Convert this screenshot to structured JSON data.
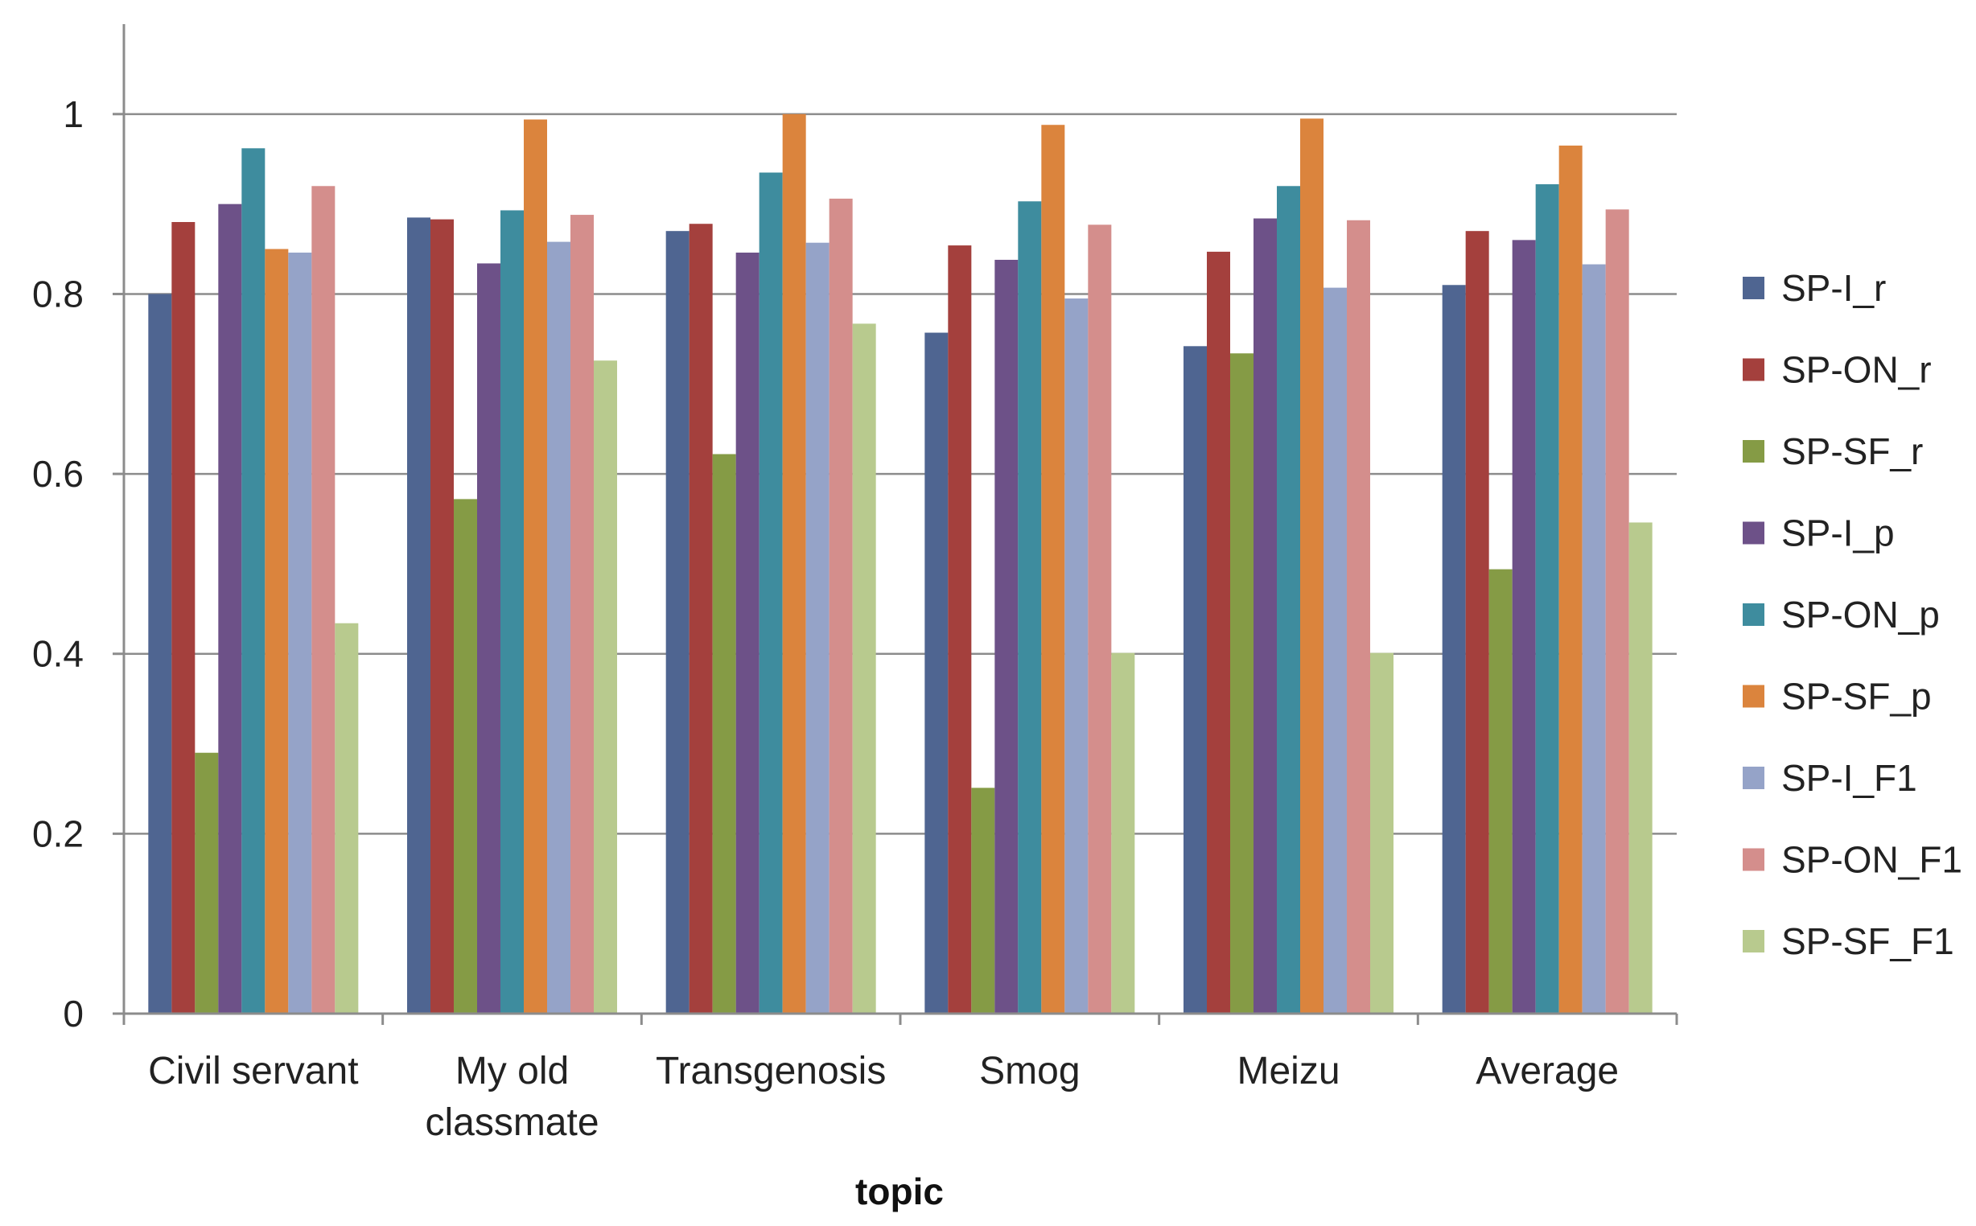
{
  "chart_data": {
    "type": "bar",
    "title": "",
    "xlabel": "topic",
    "ylabel": "",
    "ylim": [
      0,
      1.1
    ],
    "yticks": [
      "0",
      "0.2",
      "0.4",
      "0.6",
      "0.8",
      "1"
    ],
    "categories": [
      [
        "Civil servant"
      ],
      [
        "My old",
        "classmate"
      ],
      [
        "Transgenosis"
      ],
      [
        "Smog"
      ],
      [
        "Meizu"
      ],
      [
        "Average"
      ]
    ],
    "series": [
      {
        "name": "SP-I_r",
        "color": "#4F6591",
        "values": [
          0.8,
          0.885,
          0.87,
          0.757,
          0.742,
          0.81
        ]
      },
      {
        "name": "SP-ON_r",
        "color": "#A4403D",
        "values": [
          0.88,
          0.883,
          0.878,
          0.854,
          0.847,
          0.87
        ]
      },
      {
        "name": "SP-SF_r",
        "color": "#859B45",
        "values": [
          0.29,
          0.572,
          0.622,
          0.251,
          0.734,
          0.494
        ]
      },
      {
        "name": "SP-I_p",
        "color": "#6D5188",
        "values": [
          0.9,
          0.834,
          0.846,
          0.838,
          0.884,
          0.86
        ]
      },
      {
        "name": "SP-ON_p",
        "color": "#3E8C9E",
        "values": [
          0.962,
          0.893,
          0.935,
          0.903,
          0.92,
          0.922
        ]
      },
      {
        "name": "SP-SF_p",
        "color": "#DB843D",
        "values": [
          0.85,
          0.994,
          1.0,
          0.988,
          0.995,
          0.965
        ]
      },
      {
        "name": "SP-I_F1",
        "color": "#95A3C8",
        "values": [
          0.846,
          0.858,
          0.857,
          0.795,
          0.807,
          0.833
        ]
      },
      {
        "name": "SP-ON_F1",
        "color": "#D48E8C",
        "values": [
          0.92,
          0.888,
          0.906,
          0.877,
          0.882,
          0.894
        ]
      },
      {
        "name": "SP-SF_F1",
        "color": "#B8CA8E",
        "values": [
          0.434,
          0.726,
          0.767,
          0.401,
          0.401,
          0.546
        ]
      }
    ],
    "grid": true,
    "legend": "right"
  }
}
